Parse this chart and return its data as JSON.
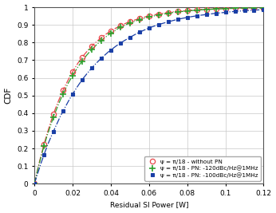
{
  "title": "",
  "xlabel": "Residual SI Power [W]",
  "ylabel": "CDF",
  "xlim": [
    0,
    0.12
  ],
  "ylim": [
    0,
    1.0
  ],
  "xticks": [
    0,
    0.02,
    0.04,
    0.06,
    0.08,
    0.1,
    0.12
  ],
  "yticks": [
    0,
    0.1,
    0.2,
    0.3,
    0.4,
    0.5,
    0.6,
    0.7,
    0.8,
    0.9,
    1.0
  ],
  "legend_entries": [
    "ψ = π/18 - without PN",
    "ψ = π/18 - PN: -120dBc/Hz@1MHz",
    "ψ = π/18 - PN: -100dBc/Hz@1MHz"
  ],
  "line_colors": [
    "#e8474b",
    "#2ca02c",
    "#1a3fa6"
  ],
  "markers": [
    "o",
    "+",
    "s"
  ],
  "linestyles": [
    "-.",
    "-.",
    "-."
  ],
  "background_color": "#ffffff",
  "grid_color": "#c8c8c8",
  "scales": [
    0.02,
    0.021,
    0.028
  ],
  "seed": 42,
  "n_samples": 50000,
  "n_markers": 25
}
